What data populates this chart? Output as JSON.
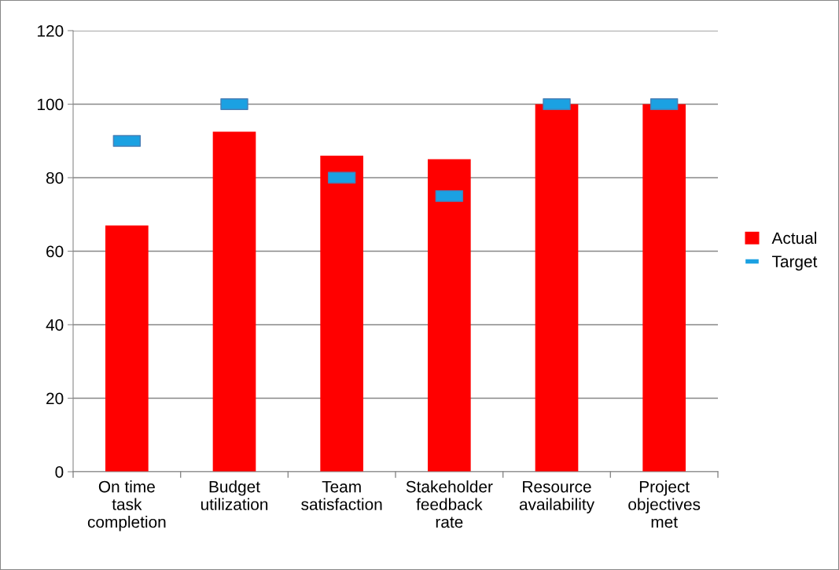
{
  "chart_data": {
    "type": "bar",
    "categories": [
      "On time task completion",
      "Budget utilization",
      "Team satisfaction",
      "Stakeholder feedback rate",
      "Resource availability",
      "Project objectives met"
    ],
    "series": [
      {
        "name": "Actual",
        "color": "#ff0000",
        "values": [
          67,
          92.5,
          86,
          85,
          100,
          100
        ]
      },
      {
        "name": "Target",
        "type": "scatter",
        "color": "#1ba1e2",
        "values": [
          90,
          100,
          80,
          75,
          100,
          100
        ]
      }
    ],
    "ylim": [
      0,
      120
    ],
    "yticks": [
      0,
      20,
      40,
      60,
      80,
      100,
      120
    ],
    "grid": "y",
    "legend": "right"
  }
}
